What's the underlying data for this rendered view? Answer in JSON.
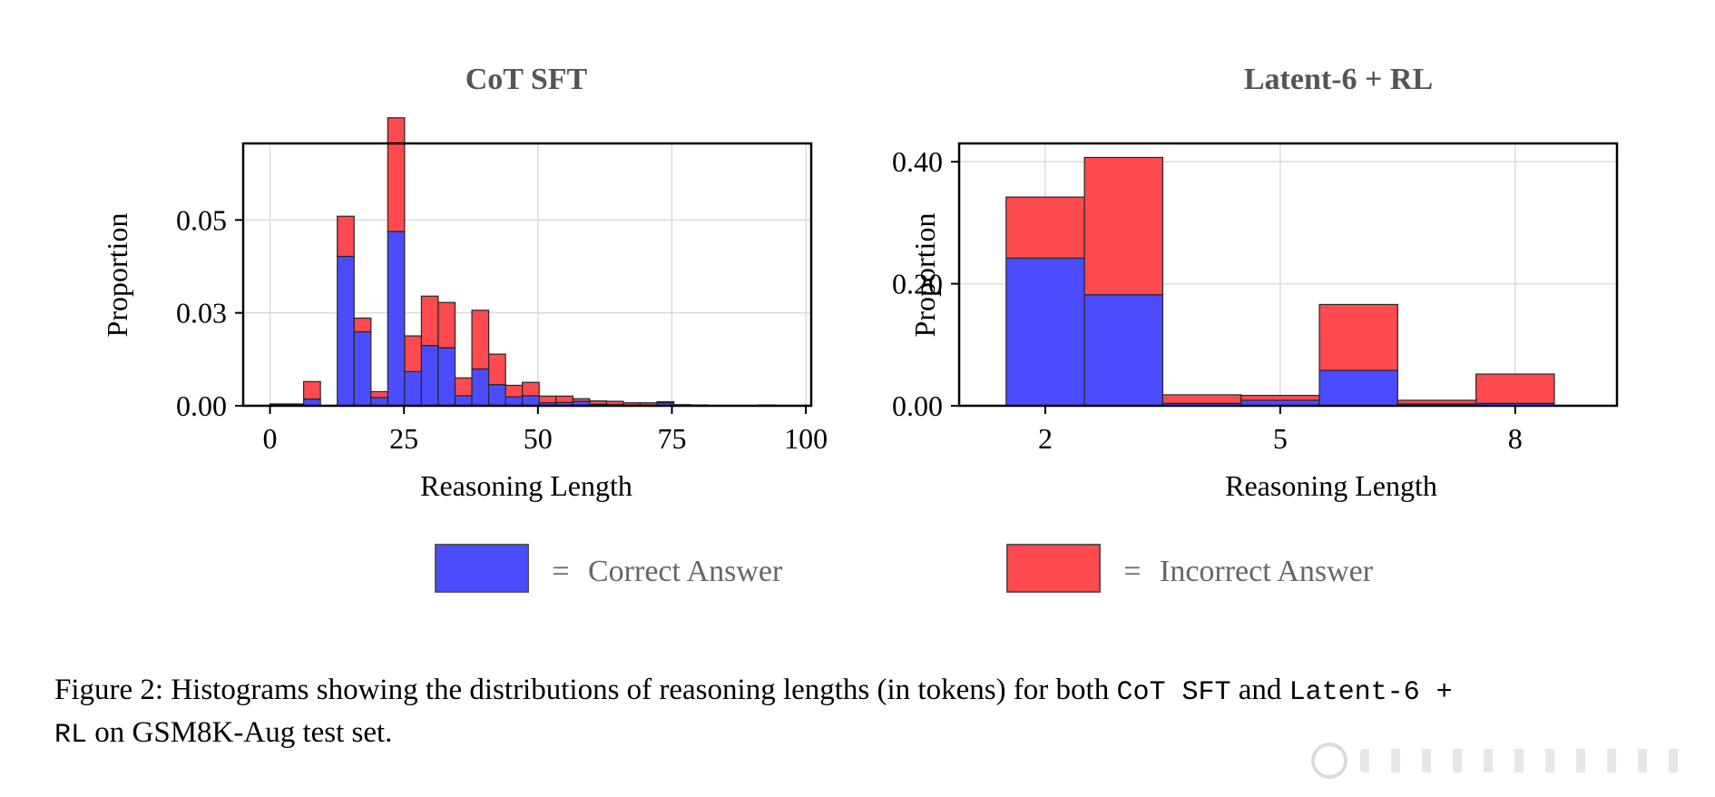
{
  "colors": {
    "correct": "#4c4cff",
    "incorrect": "#ff4a4f",
    "grid": "#dcdcdc",
    "edge": "#262626"
  },
  "legend": {
    "correct_symbol": "=",
    "correct_label": "Correct Answer",
    "incorrect_symbol": "=",
    "incorrect_label": "Incorrect Answer"
  },
  "caption": {
    "prefix": "Figure 2: Histograms showing the distributions of reasoning lengths (in tokens) for both ",
    "name1": "CoT SFT",
    "mid": " and ",
    "name2_part1": "Latent-6 +",
    "name2_part2": "RL",
    "suffix": " on GSM8K-Aug test set."
  },
  "chart_data": [
    {
      "type": "bar",
      "stacked": true,
      "title": "CoT SFT",
      "xlabel": "Reasoning Length",
      "ylabel": "Proportion",
      "xlim": [
        -5,
        101
      ],
      "ylim": [
        0,
        0.0706
      ],
      "xticks": [
        0,
        25,
        50,
        75,
        100
      ],
      "yticks": [
        0.0,
        0.025,
        0.05
      ],
      "ytick_labels": [
        "0.00",
        "0.03",
        "0.05"
      ],
      "grid": true,
      "bin_width": 3.14,
      "bin_starts": [
        0,
        3.14,
        6.28,
        9.42,
        12.56,
        15.7,
        18.84,
        21.98,
        25.12,
        28.26,
        31.4,
        34.54,
        37.68,
        40.82,
        43.96,
        47.1,
        50.24,
        53.38,
        56.52,
        59.66,
        62.8,
        65.94,
        69.08,
        72.22,
        75.36,
        78.5,
        81.64,
        84.78,
        87.92,
        91.06,
        94.2
      ],
      "series": [
        {
          "name": "Correct Answer",
          "values": [
            0.0003,
            0.0002,
            0.0018,
            0,
            0.0402,
            0.0199,
            0.0022,
            0.0469,
            0.0092,
            0.0162,
            0.0156,
            0.0027,
            0.0099,
            0.0057,
            0.0024,
            0.0027,
            0.0008,
            0.0009,
            0.0012,
            0.0004,
            0.0003,
            0.0002,
            0.0002,
            0.0008,
            0.0002,
            0.0001,
            0,
            0,
            0,
            0.0001,
            0
          ]
        },
        {
          "name": "Incorrect Answer",
          "values": [
            0.0002,
            0.0003,
            0.0047,
            0,
            0.0108,
            0.0037,
            0.0016,
            0.0306,
            0.0096,
            0.0133,
            0.0122,
            0.0048,
            0.0158,
            0.0082,
            0.0031,
            0.0036,
            0.0018,
            0.0017,
            0.0007,
            0.0009,
            0.0009,
            0.0006,
            0.0006,
            0.0003,
            0.0001,
            0.0001,
            0.0001,
            0,
            0,
            0.0001,
            0
          ]
        }
      ]
    },
    {
      "type": "bar",
      "stacked": true,
      "title": "Latent-6 + RL",
      "xlabel": "Reasoning Length",
      "ylabel": "Proportion",
      "xlim": [
        0.9,
        9.3
      ],
      "ylim": [
        0,
        0.43
      ],
      "xticks": [
        2,
        5,
        8
      ],
      "yticks": [
        0.0,
        0.2,
        0.4
      ],
      "ytick_labels": [
        "0.00",
        "0.20",
        "0.40"
      ],
      "grid": true,
      "bin_width": 1.0,
      "bin_starts": [
        1.5,
        2.5,
        3.5,
        4.5,
        5.5,
        6.5,
        7.5
      ],
      "series": [
        {
          "name": "Correct Answer",
          "values": [
            0.242,
            0.182,
            0.004,
            0.009,
            0.058,
            0.003,
            0.004
          ]
        },
        {
          "name": "Incorrect Answer",
          "values": [
            0.1,
            0.225,
            0.014,
            0.008,
            0.108,
            0.006,
            0.048
          ]
        }
      ]
    }
  ]
}
